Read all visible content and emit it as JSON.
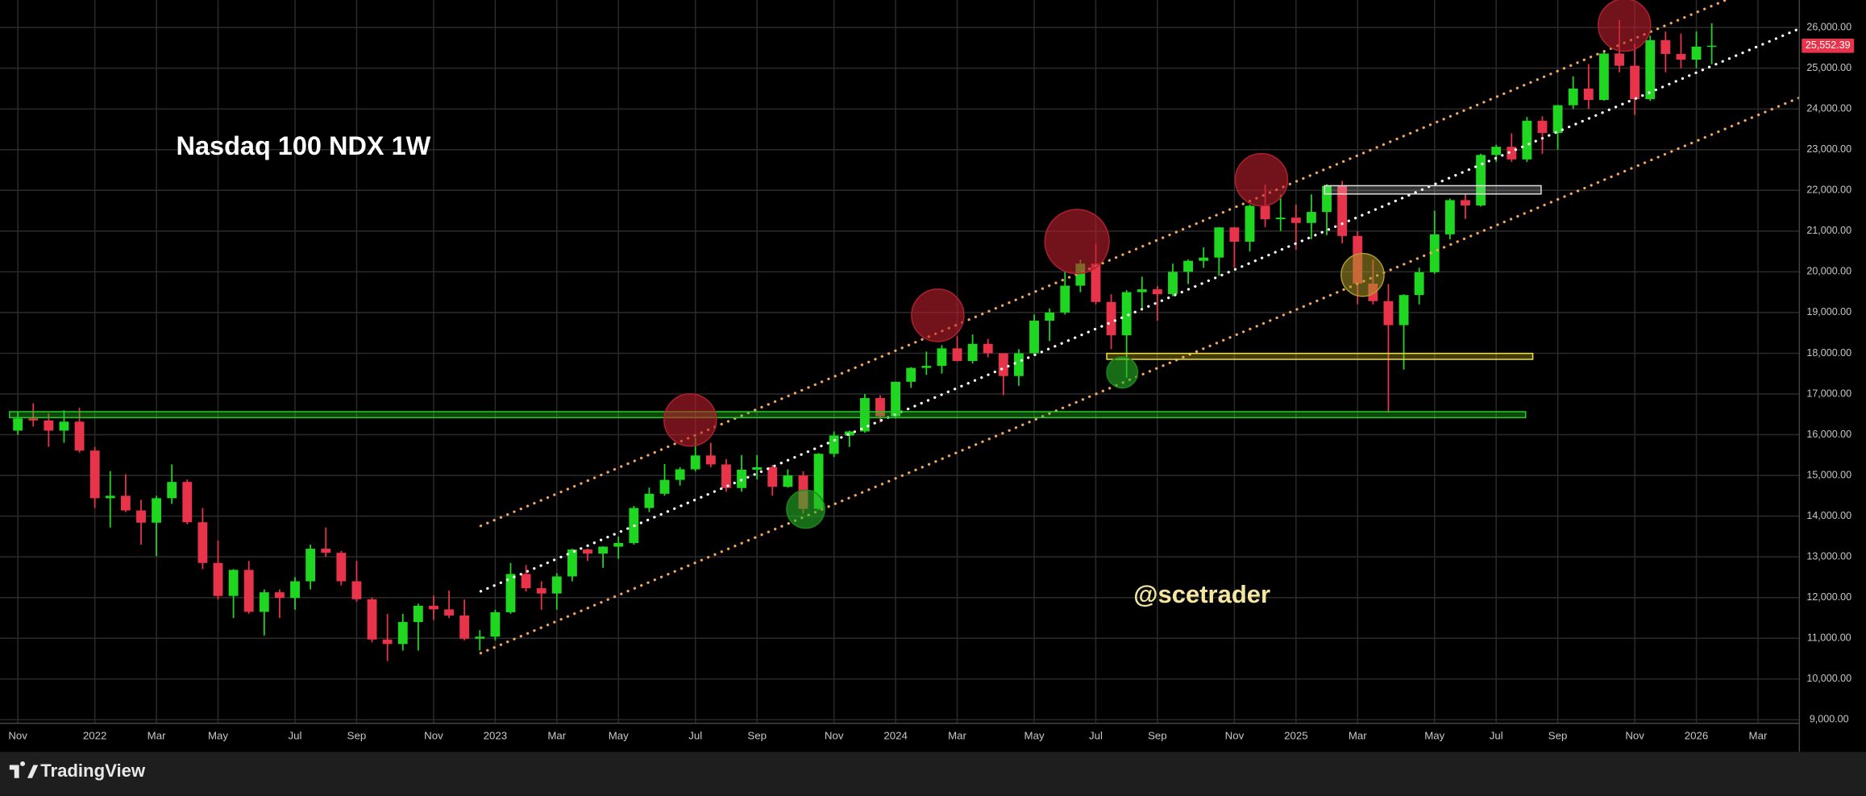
{
  "chart_data": {
    "type": "candlestick",
    "title": "Nasdaq 100 NDX 1W",
    "annotation": "@scetrader",
    "categories": [
      "Nov",
      null,
      null,
      null,
      null,
      "2022",
      null,
      null,
      null,
      "Mar",
      null,
      null,
      null,
      "May",
      null,
      null,
      null,
      null,
      "Jul",
      null,
      null,
      null,
      "Sep",
      null,
      null,
      null,
      null,
      "Nov",
      null,
      null,
      null,
      "2023",
      null,
      null,
      null,
      "Mar",
      null,
      null,
      null,
      "May",
      null,
      null,
      null,
      null,
      "Jul",
      null,
      null,
      null,
      "Sep",
      null,
      null,
      null,
      null,
      "Nov",
      null,
      null,
      null,
      "2024",
      null,
      null,
      null,
      "Mar",
      null,
      null,
      null,
      null,
      "May",
      null,
      null,
      null,
      "Jul",
      null,
      null,
      null,
      "Sep",
      null,
      null,
      null,
      null,
      "Nov",
      null,
      null,
      null,
      "2025",
      null,
      null,
      null,
      "Mar",
      null,
      null,
      null,
      null,
      "May",
      null,
      null,
      null,
      "Jul",
      null,
      null,
      null,
      "Sep",
      null,
      null,
      null,
      null,
      "Nov",
      null,
      null,
      null,
      "2026",
      null,
      null,
      null,
      "Mar",
      null,
      null
    ],
    "open": [
      16100,
      16400,
      16350,
      16100,
      16320,
      15610,
      14440,
      14500,
      14140,
      13840,
      14440,
      14840,
      13850,
      12850,
      12040,
      12680,
      11650,
      12130,
      11990,
      12400,
      13200,
      13100,
      12400,
      11960,
      10970,
      10860,
      11400,
      11800,
      11710,
      11560,
      10990,
      11040,
      11640,
      12580,
      12230,
      12100,
      12520,
      13180,
      13080,
      13250,
      13340,
      14200,
      14550,
      14890,
      15150,
      15490,
      15270,
      14690,
      15140,
      15200,
      14720,
      15000,
      14180,
      15530,
      15980,
      16080,
      16900,
      16450,
      17300,
      17640,
      17690,
      18120,
      17810,
      18230,
      18000,
      17440,
      18000,
      18800,
      19000,
      19660,
      20200,
      19260,
      18440,
      19500,
      19570,
      19450,
      20000,
      20270,
      20350,
      21090,
      20740,
      21620,
      21290,
      21330,
      21200,
      21470,
      22110,
      20880,
      19710,
      19280,
      18690,
      19430,
      19990,
      20920,
      21760,
      21630,
      22870,
      23070,
      22760,
      23710,
      23410,
      24090,
      24500,
      24220,
      25360,
      25060,
      24240,
      25690,
      25350,
      25210,
      25530,
      null,
      null,
      null,
      null,
      null
    ],
    "high": [
      16560,
      16770,
      16520,
      16600,
      16660,
      15700,
      15100,
      15030,
      14400,
      14500,
      15270,
      14900,
      14200,
      13400,
      12700,
      12900,
      12200,
      12200,
      12500,
      13300,
      13720,
      13150,
      12900,
      12000,
      11600,
      11600,
      11850,
      12050,
      12170,
      11950,
      11200,
      11700,
      12850,
      12800,
      12400,
      12600,
      13200,
      13200,
      13260,
      13500,
      14250,
      14700,
      15280,
      15200,
      15930,
      15800,
      15400,
      15500,
      15500,
      15260,
      15150,
      15100,
      15550,
      16080,
      16100,
      17000,
      16970,
      17300,
      17660,
      18040,
      18200,
      18420,
      18460,
      18350,
      18000,
      18100,
      18950,
      19100,
      20000,
      20300,
      20690,
      19450,
      19550,
      19880,
      19650,
      20200,
      20300,
      20600,
      21100,
      21100,
      21650,
      22140,
      21900,
      21650,
      21900,
      22150,
      22230,
      21000,
      20300,
      19700,
      19450,
      20100,
      21500,
      21800,
      21900,
      22900,
      23120,
      23400,
      23800,
      23820,
      24100,
      24800,
      25100,
      25400,
      26180,
      25600,
      25800,
      25900,
      25850,
      25900,
      26100,
      null,
      null,
      null,
      null,
      null
    ],
    "low": [
      16000,
      16200,
      15700,
      15800,
      15560,
      14200,
      13720,
      14100,
      13300,
      13020,
      14300,
      13800,
      12700,
      11950,
      11500,
      11600,
      11070,
      11500,
      11700,
      12200,
      13000,
      12300,
      11900,
      10900,
      10440,
      10700,
      10700,
      11450,
      11500,
      10950,
      10700,
      10950,
      11600,
      12150,
      11700,
      11700,
      12400,
      12900,
      12730,
      12950,
      13300,
      14100,
      14500,
      14750,
      15100,
      15200,
      14600,
      14600,
      14900,
      14500,
      14700,
      14060,
      14150,
      15450,
      15700,
      16050,
      16300,
      16400,
      17150,
      17470,
      17500,
      17800,
      17750,
      17900,
      16970,
      17200,
      17950,
      18300,
      18950,
      19500,
      19200,
      18100,
      17400,
      19100,
      18800,
      19400,
      19700,
      20100,
      19900,
      20100,
      20500,
      21100,
      21000,
      20540,
      20800,
      20900,
      20700,
      19200,
      19200,
      16540,
      17600,
      19200,
      19950,
      20800,
      21300,
      21600,
      22700,
      22700,
      22700,
      22900,
      23000,
      24000,
      24000,
      24200,
      24900,
      23850,
      24200,
      24900,
      25000,
      25000,
      25100,
      null,
      null,
      null,
      null,
      null
    ],
    "close": [
      16400,
      16350,
      16100,
      16320,
      15610,
      14440,
      14500,
      14140,
      13840,
      14440,
      14840,
      13850,
      12850,
      12040,
      12680,
      11650,
      12130,
      11990,
      12400,
      13200,
      13100,
      12400,
      11960,
      10970,
      10860,
      11400,
      11800,
      11710,
      11560,
      10990,
      11040,
      11640,
      12580,
      12230,
      12100,
      12520,
      13180,
      13080,
      13250,
      13340,
      14200,
      14550,
      14890,
      15150,
      15490,
      15270,
      14690,
      15140,
      15200,
      14720,
      15000,
      14180,
      15530,
      15980,
      16080,
      16900,
      16450,
      17300,
      17640,
      17690,
      18120,
      17810,
      18230,
      18000,
      17440,
      18000,
      18800,
      19000,
      19660,
      20200,
      19260,
      18440,
      19500,
      19570,
      19450,
      20000,
      20270,
      20350,
      21090,
      20740,
      21620,
      21290,
      21330,
      21200,
      21470,
      22110,
      20880,
      19710,
      19280,
      18690,
      19430,
      19990,
      20920,
      21760,
      21630,
      22870,
      23070,
      22760,
      23710,
      23410,
      24090,
      24500,
      24220,
      25360,
      25060,
      24240,
      25690,
      25350,
      25210,
      25530,
      25552.39,
      null,
      null,
      null,
      null,
      null
    ],
    "up_color": "#1fd620",
    "down_color": "#e8344a",
    "ylim": [
      8912,
      26672
    ],
    "yticks": [
      {
        "value": 9000,
        "label": "9,000.00"
      },
      {
        "value": 10000,
        "label": "10,000.00"
      },
      {
        "value": 11000,
        "label": "11,000.00"
      },
      {
        "value": 12000,
        "label": "12,000.00"
      },
      {
        "value": 13000,
        "label": "13,000.00"
      },
      {
        "value": 14000,
        "label": "14,000.00"
      },
      {
        "value": 15000,
        "label": "15,000.00"
      },
      {
        "value": 16000,
        "label": "16,000.00"
      },
      {
        "value": 17000,
        "label": "17,000.00"
      },
      {
        "value": 18000,
        "label": "18,000.00"
      },
      {
        "value": 19000,
        "label": "19,000.00"
      },
      {
        "value": 20000,
        "label": "20,000.00"
      },
      {
        "value": 21000,
        "label": "21,000.00"
      },
      {
        "value": 22000,
        "label": "22,000.00"
      },
      {
        "value": 23000,
        "label": "23,000.00"
      },
      {
        "value": 24000,
        "label": "24,000.00"
      },
      {
        "value": 25000,
        "label": "25,000.00"
      },
      {
        "value": 26000,
        "label": "26,000.00"
      }
    ],
    "last_price": {
      "value": 25552.39,
      "label": "25,552.39"
    },
    "grid": true
  },
  "footer": {
    "brand": "TradingView"
  }
}
